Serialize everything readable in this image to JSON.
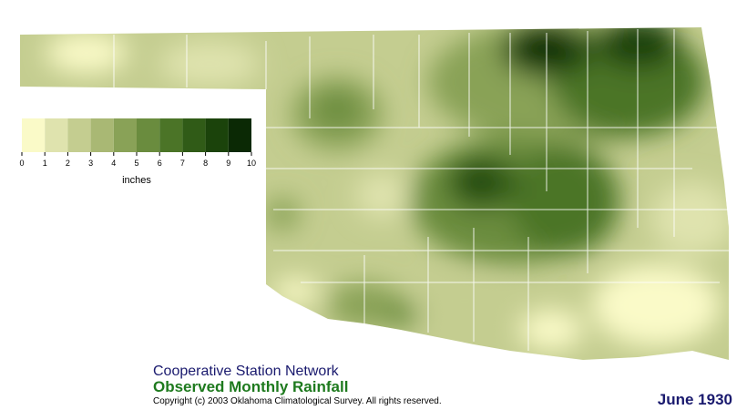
{
  "legend": {
    "ticks": [
      0,
      1,
      2,
      3,
      4,
      5,
      6,
      7,
      8,
      9,
      10
    ],
    "colors": [
      "#fafac8",
      "#dfe3ae",
      "#c4cd90",
      "#a9b874",
      "#89a257",
      "#6a8c3e",
      "#4b7427",
      "#305b17",
      "#1b430b",
      "#0b2905"
    ],
    "unit": "inches"
  },
  "network": "Cooperative Station Network",
  "title": "Observed Monthly Rainfall",
  "copyright": "Copyright (c) 2003 Oklahoma Climatological Survey. All rights reserved.",
  "period": "June 1930"
}
